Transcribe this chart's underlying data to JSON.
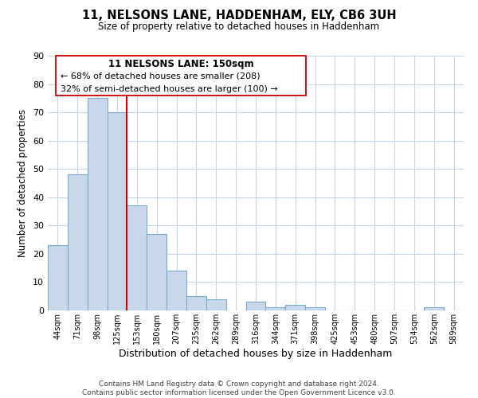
{
  "title": "11, NELSONS LANE, HADDENHAM, ELY, CB6 3UH",
  "subtitle": "Size of property relative to detached houses in Haddenham",
  "xlabel": "Distribution of detached houses by size in Haddenham",
  "ylabel": "Number of detached properties",
  "bar_color": "#c8d8ea",
  "bar_edgecolor": "#7aaac8",
  "bin_labels": [
    "44sqm",
    "71sqm",
    "98sqm",
    "125sqm",
    "153sqm",
    "180sqm",
    "207sqm",
    "235sqm",
    "262sqm",
    "289sqm",
    "316sqm",
    "344sqm",
    "371sqm",
    "398sqm",
    "425sqm",
    "453sqm",
    "480sqm",
    "507sqm",
    "534sqm",
    "562sqm",
    "589sqm"
  ],
  "bar_heights": [
    23,
    48,
    75,
    70,
    37,
    27,
    14,
    5,
    4,
    0,
    3,
    1,
    2,
    1,
    0,
    0,
    0,
    0,
    0,
    1,
    0
  ],
  "n_bins": 21,
  "ylim": [
    0,
    90
  ],
  "yticks": [
    0,
    10,
    20,
    30,
    40,
    50,
    60,
    70,
    80,
    90
  ],
  "marker_line_color": "#cc0000",
  "marker_line_bin": 4,
  "annotation_line1": "11 NELSONS LANE: 150sqm",
  "annotation_line2": "← 68% of detached houses are smaller (208)",
  "annotation_line3": "32% of semi-detached houses are larger (100) →",
  "footer_text": "Contains HM Land Registry data © Crown copyright and database right 2024.\nContains public sector information licensed under the Open Government Licence v3.0.",
  "background_color": "#ffffff",
  "grid_color": "#c5d5e5"
}
